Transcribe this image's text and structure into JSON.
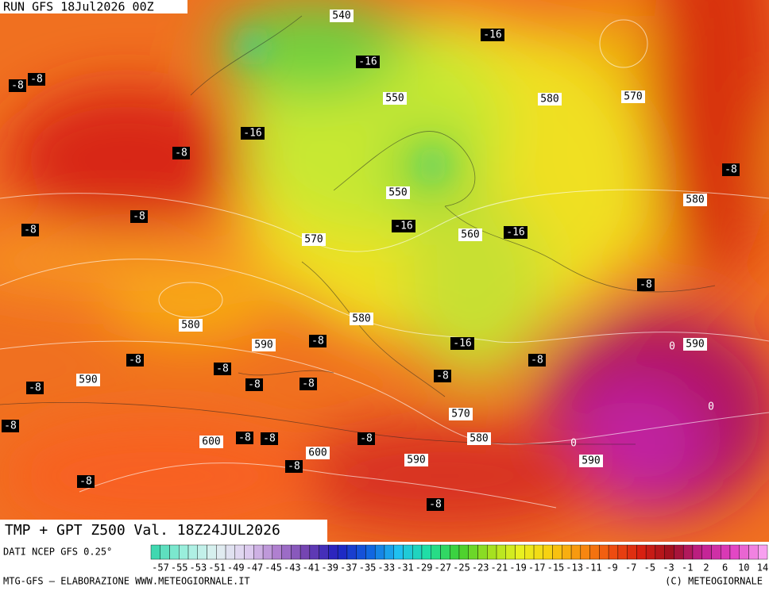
{
  "header": {
    "run": "RUN GFS 18Jul2026 00Z"
  },
  "map": {
    "height_labels": [
      "540",
      "550",
      "580",
      "570",
      "550",
      "560",
      "580",
      "570",
      "580",
      "580",
      "590",
      "590",
      "590",
      "570",
      "580",
      "600",
      "600",
      "590",
      "590"
    ],
    "temperature_labels": [
      "-16",
      "-16",
      "-16",
      "-16",
      "-16",
      "-16",
      "-8",
      "-8",
      "-8",
      "-8",
      "-8",
      "-8",
      "-8",
      "-8",
      "-8",
      "-8",
      "-8",
      "-8",
      "-8",
      "-8",
      "-8",
      "-8",
      "-8",
      "-8",
      "-8",
      "-8",
      "-8",
      "-8"
    ],
    "zero_labels": [
      "0",
      "0",
      "0"
    ]
  },
  "footer": {
    "title": "TMP + GPT Z500 Val. 18Z24JUL2026",
    "source": "DATI NCEP GFS 0.25°",
    "credits": "MTG-GFS – ELABORAZIONE WWW.METEOGIORNALE.IT",
    "copyright": "(C) METEOGIORNALE",
    "colorbar_labels": [
      "-57",
      "-55",
      "-53",
      "-51",
      "-49",
      "-47",
      "-45",
      "-43",
      "-41",
      "-39",
      "-37",
      "-35",
      "-33",
      "-31",
      "-29",
      "-27",
      "-25",
      "-23",
      "-21",
      "-19",
      "-17",
      "-15",
      "-13",
      "-11",
      "-9",
      "-7",
      "-5",
      "-3",
      "-1",
      "2",
      "6",
      "10",
      "14"
    ]
  }
}
